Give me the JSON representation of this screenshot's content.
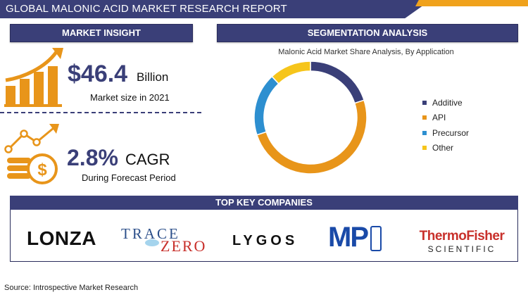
{
  "header": {
    "title": "GLOBAL MALONIC ACID MARKET RESEARCH REPORT"
  },
  "market_insight": {
    "heading": "MARKET INSIGHT",
    "market_size_value": "$46.4",
    "market_size_unit": "Billion",
    "market_size_caption": "Market size in 2021",
    "cagr_value": "2.8%",
    "cagr_label": "CAGR",
    "cagr_caption": "During Forecast Period"
  },
  "segmentation": {
    "heading": "SEGMENTATION ANALYSIS"
  },
  "chart_data": {
    "type": "pie",
    "donut": true,
    "title": "Malonic Acid Market Share Analysis, By Application",
    "legend_position": "right",
    "categories": [
      "Additive",
      "API",
      "Precursor",
      "Other"
    ],
    "values": [
      20,
      50,
      18,
      12
    ],
    "colors": [
      "#3a3f78",
      "#e8951a",
      "#2d8fd0",
      "#f6c51b"
    ]
  },
  "companies": {
    "heading": "TOP KEY COMPANIES",
    "items": [
      {
        "name": "LONZA"
      },
      {
        "name_part1": "TRACE",
        "name_part2": "ZERO"
      },
      {
        "name": "LYGOS"
      },
      {
        "name": "MP"
      },
      {
        "name_line1": "ThermoFisher",
        "name_line2": "SCIENTIFIC"
      }
    ]
  },
  "footer": {
    "source": "Source: Introspective Market Research"
  },
  "colors": {
    "navy": "#3a3f78",
    "orange": "#e8951a",
    "accent_orange": "#f0a21c"
  }
}
